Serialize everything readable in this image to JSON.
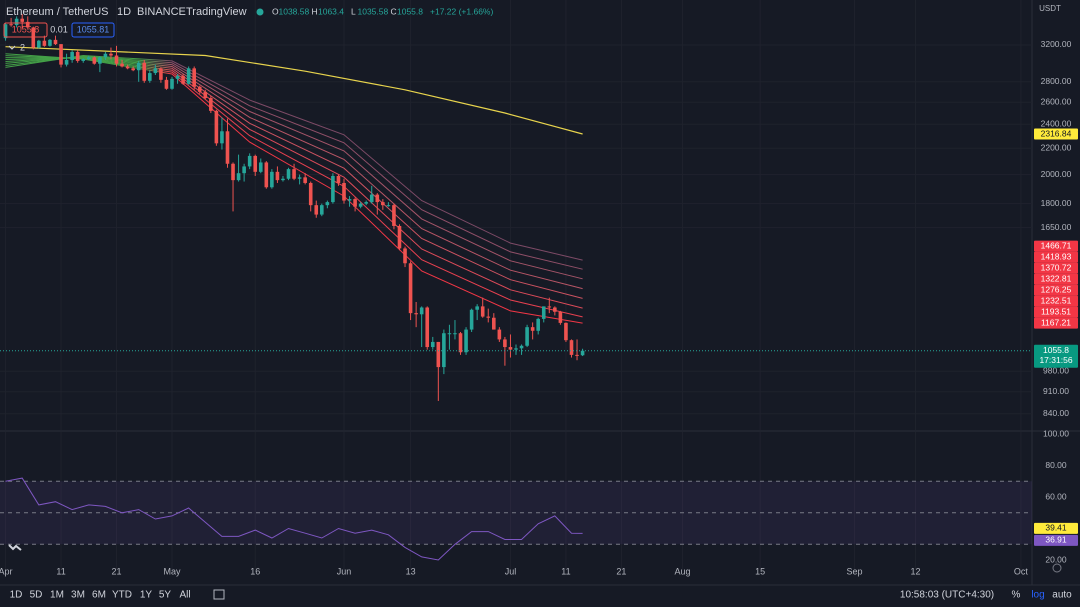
{
  "header": {
    "symbol": "Ethereum / TetherUS",
    "interval": "1D",
    "exchange": "BINANCE",
    "source": "TradingView",
    "ohlc_keys": [
      "O",
      "H",
      "L",
      "C"
    ],
    "change": "+17.22 (+1.66%)",
    "indicators_toggle": "2"
  },
  "trade": {
    "spread": 0.01,
    "buy": 1055.81
  },
  "axis_unit": "USDT",
  "countdown": "17:31:56",
  "toolbar": {
    "ranges": [
      "1D",
      "5D",
      "1M",
      "3M",
      "6M",
      "YTD",
      "1Y",
      "5Y",
      "All"
    ],
    "clock": "10:58:03 (UTC+4:30)",
    "percent": "%",
    "log": "log",
    "auto": "auto"
  },
  "chart_data": {
    "type": "candlestick",
    "log": true,
    "grid": true,
    "up_color": "#26a69a",
    "down_color": "#ef5350",
    "xlim": [
      "03-31",
      "10-03"
    ],
    "xticks": [
      {
        "value": "04-01",
        "label": "Apr"
      },
      {
        "value": "04-11",
        "label": "11"
      },
      {
        "value": "04-21",
        "label": "21"
      },
      {
        "value": "05-01",
        "label": "May"
      },
      {
        "value": "05-16",
        "label": "16"
      },
      {
        "value": "06-01",
        "label": "Jun"
      },
      {
        "value": "06-13",
        "label": "13"
      },
      {
        "value": "07-01",
        "label": "Jul"
      },
      {
        "value": "07-11",
        "label": "11"
      },
      {
        "value": "07-21",
        "label": "21"
      },
      {
        "value": "08-01",
        "label": "Aug"
      },
      {
        "value": "08-15",
        "label": "15"
      },
      {
        "value": "09-01",
        "label": "Sep"
      },
      {
        "value": "09-12",
        "label": "12"
      },
      {
        "value": "10-01",
        "label": "Oct"
      }
    ],
    "ylim": [
      792,
      3767
    ],
    "yticks": [
      {
        "value": 3200,
        "label": "3200.00"
      },
      {
        "value": 2800,
        "label": "2800.00"
      },
      {
        "value": 2600,
        "label": "2600.00"
      },
      {
        "value": 2400,
        "label": "2400.00"
      },
      {
        "value": 2200,
        "label": "2200.00"
      },
      {
        "value": 2000,
        "label": "2000.00"
      },
      {
        "value": 1800,
        "label": "1800.00"
      },
      {
        "value": 1650,
        "label": "1650.00"
      },
      {
        "value": 980,
        "label": "980.00"
      },
      {
        "value": 910,
        "label": "910.00"
      },
      {
        "value": 840,
        "label": "840.00"
      }
    ],
    "x": [
      "04-01",
      "04-02",
      "04-03",
      "04-04",
      "04-05",
      "04-06",
      "04-07",
      "04-08",
      "04-09",
      "04-10",
      "04-11",
      "04-12",
      "04-13",
      "04-14",
      "04-15",
      "04-16",
      "04-17",
      "04-18",
      "04-19",
      "04-20",
      "04-21",
      "04-22",
      "04-23",
      "04-24",
      "04-25",
      "04-26",
      "04-27",
      "04-28",
      "04-29",
      "04-30",
      "05-01",
      "05-02",
      "05-03",
      "05-04",
      "05-05",
      "05-06",
      "05-07",
      "05-08",
      "05-09",
      "05-10",
      "05-11",
      "05-12",
      "05-13",
      "05-14",
      "05-15",
      "05-16",
      "05-17",
      "05-18",
      "05-19",
      "05-20",
      "05-21",
      "05-22",
      "05-23",
      "05-24",
      "05-25",
      "05-26",
      "05-27",
      "05-28",
      "05-29",
      "05-30",
      "05-31",
      "06-01",
      "06-02",
      "06-03",
      "06-04",
      "06-05",
      "06-06",
      "06-07",
      "06-08",
      "06-09",
      "06-10",
      "06-11",
      "06-12",
      "06-13",
      "06-14",
      "06-15",
      "06-16",
      "06-17",
      "06-18",
      "06-19",
      "06-20",
      "06-21",
      "06-22",
      "06-23",
      "06-24",
      "06-25",
      "06-26",
      "06-27",
      "06-28",
      "06-29",
      "06-30",
      "07-01",
      "07-02",
      "07-03",
      "07-04",
      "07-05",
      "07-06",
      "07-07",
      "07-08",
      "07-09",
      "07-10",
      "07-11",
      "07-12",
      "07-13",
      "07-14"
    ],
    "ohlc": [
      [
        3280,
        3470,
        3250,
        3450
      ],
      [
        3450,
        3530,
        3420,
        3440
      ],
      [
        3440,
        3550,
        3410,
        3520
      ],
      [
        3520,
        3580,
        3400,
        3480
      ],
      [
        3480,
        3550,
        3400,
        3410
      ],
      [
        3410,
        3420,
        3150,
        3170
      ],
      [
        3170,
        3260,
        3160,
        3250
      ],
      [
        3250,
        3310,
        3180,
        3190
      ],
      [
        3190,
        3270,
        3180,
        3260
      ],
      [
        3260,
        3310,
        3200,
        3210
      ],
      [
        3210,
        3210,
        2950,
        2980
      ],
      [
        2980,
        3100,
        2960,
        3030
      ],
      [
        3030,
        3140,
        3000,
        3120
      ],
      [
        3120,
        3140,
        3000,
        3020
      ],
      [
        3020,
        3050,
        3000,
        3040
      ],
      [
        3040,
        3080,
        3030,
        3060
      ],
      [
        3060,
        3070,
        2980,
        2990
      ],
      [
        2990,
        3070,
        2900,
        3060
      ],
      [
        3060,
        3120,
        3030,
        3100
      ],
      [
        3100,
        3170,
        3040,
        3080
      ],
      [
        3080,
        3190,
        2960,
        2990
      ],
      [
        2990,
        3030,
        2950,
        2960
      ],
      [
        2960,
        2980,
        2930,
        2940
      ],
      [
        2940,
        2960,
        2910,
        2920
      ],
      [
        2920,
        3020,
        2800,
        3000
      ],
      [
        3000,
        3030,
        2790,
        2810
      ],
      [
        2810,
        2920,
        2790,
        2890
      ],
      [
        2890,
        2980,
        2870,
        2940
      ],
      [
        2940,
        2950,
        2790,
        2820
      ],
      [
        2820,
        2850,
        2720,
        2730
      ],
      [
        2730,
        2850,
        2720,
        2830
      ],
      [
        2830,
        2880,
        2780,
        2860
      ],
      [
        2860,
        2880,
        2770,
        2780
      ],
      [
        2780,
        2960,
        2770,
        2940
      ],
      [
        2940,
        2960,
        2720,
        2750
      ],
      [
        2750,
        2760,
        2680,
        2700
      ],
      [
        2700,
        2720,
        2630,
        2640
      ],
      [
        2640,
        2660,
        2500,
        2520
      ],
      [
        2520,
        2530,
        2220,
        2240
      ],
      [
        2240,
        2460,
        2190,
        2340
      ],
      [
        2340,
        2450,
        2050,
        2080
      ],
      [
        2080,
        2090,
        1750,
        1960
      ],
      [
        1960,
        2150,
        1950,
        2010
      ],
      [
        2010,
        2080,
        1950,
        2060
      ],
      [
        2060,
        2160,
        2040,
        2140
      ],
      [
        2140,
        2150,
        1990,
        2020
      ],
      [
        2020,
        2120,
        2010,
        2090
      ],
      [
        2090,
        2100,
        1900,
        1910
      ],
      [
        1910,
        2040,
        1900,
        2020
      ],
      [
        2020,
        2060,
        1940,
        1960
      ],
      [
        1960,
        1990,
        1950,
        1970
      ],
      [
        1970,
        2050,
        1960,
        2040
      ],
      [
        2040,
        2080,
        1960,
        1970
      ],
      [
        1970,
        2000,
        1930,
        1980
      ],
      [
        1980,
        2010,
        1930,
        1940
      ],
      [
        1940,
        1950,
        1750,
        1790
      ],
      [
        1790,
        1820,
        1710,
        1730
      ],
      [
        1730,
        1800,
        1720,
        1790
      ],
      [
        1790,
        1820,
        1770,
        1810
      ],
      [
        1810,
        2010,
        1800,
        1990
      ],
      [
        1990,
        2000,
        1920,
        1940
      ],
      [
        1940,
        1970,
        1800,
        1820
      ],
      [
        1820,
        1850,
        1780,
        1830
      ],
      [
        1830,
        1840,
        1750,
        1780
      ],
      [
        1780,
        1810,
        1770,
        1800
      ],
      [
        1800,
        1820,
        1790,
        1810
      ],
      [
        1810,
        1920,
        1800,
        1860
      ],
      [
        1860,
        1870,
        1730,
        1810
      ],
      [
        1810,
        1830,
        1760,
        1790
      ],
      [
        1790,
        1810,
        1780,
        1790
      ],
      [
        1790,
        1800,
        1640,
        1660
      ],
      [
        1660,
        1670,
        1520,
        1530
      ],
      [
        1530,
        1540,
        1430,
        1450
      ],
      [
        1450,
        1460,
        1180,
        1210
      ],
      [
        1210,
        1260,
        1150,
        1205
      ],
      [
        1205,
        1240,
        1070,
        1235
      ],
      [
        1235,
        1240,
        1060,
        1070
      ],
      [
        1070,
        1110,
        1060,
        1090
      ],
      [
        1090,
        1090,
        880,
        995
      ],
      [
        995,
        1140,
        970,
        1125
      ],
      [
        1125,
        1160,
        1060,
        1125
      ],
      [
        1125,
        1180,
        1100,
        1125
      ],
      [
        1125,
        1130,
        1040,
        1050
      ],
      [
        1050,
        1150,
        1040,
        1140
      ],
      [
        1140,
        1230,
        1130,
        1225
      ],
      [
        1225,
        1250,
        1180,
        1240
      ],
      [
        1240,
        1280,
        1190,
        1195
      ],
      [
        1195,
        1230,
        1170,
        1190
      ],
      [
        1190,
        1210,
        1140,
        1140
      ],
      [
        1140,
        1150,
        1090,
        1100
      ],
      [
        1100,
        1110,
        1000,
        1070
      ],
      [
        1070,
        1120,
        1030,
        1060
      ],
      [
        1060,
        1080,
        1040,
        1065
      ],
      [
        1065,
        1080,
        1040,
        1075
      ],
      [
        1075,
        1160,
        1070,
        1150
      ],
      [
        1150,
        1170,
        1100,
        1135
      ],
      [
        1135,
        1190,
        1120,
        1185
      ],
      [
        1185,
        1240,
        1170,
        1240
      ],
      [
        1240,
        1280,
        1210,
        1235
      ],
      [
        1235,
        1240,
        1200,
        1216
      ],
      [
        1216,
        1220,
        1160,
        1168
      ],
      [
        1168,
        1170,
        1090,
        1097
      ],
      [
        1097,
        1100,
        1030,
        1040
      ],
      [
        1040,
        1100,
        1020,
        1038.58
      ],
      [
        1038.58,
        1063.4,
        1035.58,
        1055.8
      ]
    ],
    "ma": {
      "color": "#e8d44d",
      "x": [
        "04-01",
        "05-07",
        "05-25",
        "06-12",
        "06-30",
        "07-14"
      ],
      "values": [
        3180,
        3080,
        2910,
        2720,
        2500,
        2316.84
      ]
    },
    "ribbon_early_color": "#43a047",
    "ribbon_x": [
      "04-01",
      "04-15",
      "05-01",
      "05-15",
      "06-01",
      "06-15",
      "07-01",
      "07-14"
    ],
    "ribbon": [
      {
        "color": "#f23645",
        "values": [
          3100,
          3040,
          2880,
          2250,
          1850,
          1410,
          1220,
          1167.21
        ]
      },
      {
        "color": "#e8404f",
        "values": [
          3079,
          3046,
          2900,
          2303,
          1916,
          1469,
          1269,
          1193.51
        ]
      },
      {
        "color": "#dc4a58",
        "values": [
          3057,
          3051,
          2920,
          2356,
          1981,
          1527,
          1317,
          1232.51
        ]
      },
      {
        "color": "#cc5260",
        "values": [
          3036,
          3057,
          2940,
          2409,
          2047,
          1586,
          1366,
          1276.25
        ]
      },
      {
        "color": "#b85565",
        "values": [
          3014,
          3063,
          2960,
          2461,
          2113,
          1644,
          1414,
          1322.81
        ]
      },
      {
        "color": "#a45468",
        "values": [
          2993,
          3069,
          2980,
          2514,
          2179,
          1703,
          1463,
          1370.72
        ]
      },
      {
        "color": "#904f68",
        "values": [
          2971,
          3074,
          3000,
          2567,
          2244,
          1761,
          1511,
          1418.93
        ]
      },
      {
        "color": "#7d4a66",
        "values": [
          2950,
          3080,
          3020,
          2620,
          2310,
          1820,
          1560,
          1466.71
        ]
      }
    ],
    "rsi": {
      "color": "#7e57c2",
      "ylim": [
        20,
        100
      ],
      "yticks": [
        {
          "value": 100,
          "label": "100.00"
        },
        {
          "value": 80,
          "label": "80.00"
        },
        {
          "value": 60,
          "label": "60.00"
        },
        {
          "value": 20,
          "label": "20.00"
        }
      ],
      "levels": [
        70,
        50,
        30
      ],
      "ma_last": 39.41,
      "x": [
        "04-01",
        "04-04",
        "04-07",
        "04-10",
        "04-13",
        "04-16",
        "04-19",
        "04-22",
        "04-25",
        "04-28",
        "05-01",
        "05-04",
        "05-07",
        "05-10",
        "05-13",
        "05-16",
        "05-19",
        "05-22",
        "05-25",
        "05-28",
        "05-31",
        "06-03",
        "06-06",
        "06-09",
        "06-12",
        "06-15",
        "06-18",
        "06-21",
        "06-24",
        "06-27",
        "06-30",
        "07-03",
        "07-06",
        "07-09",
        "07-12",
        "07-14"
      ],
      "values": [
        70,
        72,
        55,
        57,
        52,
        55,
        54,
        50,
        52,
        46,
        48,
        53,
        44,
        35,
        35,
        39,
        34,
        40,
        37,
        34,
        40,
        37,
        39,
        36,
        28,
        22,
        20,
        30,
        38,
        38,
        33,
        33,
        43,
        48,
        37,
        36.91
      ]
    }
  }
}
